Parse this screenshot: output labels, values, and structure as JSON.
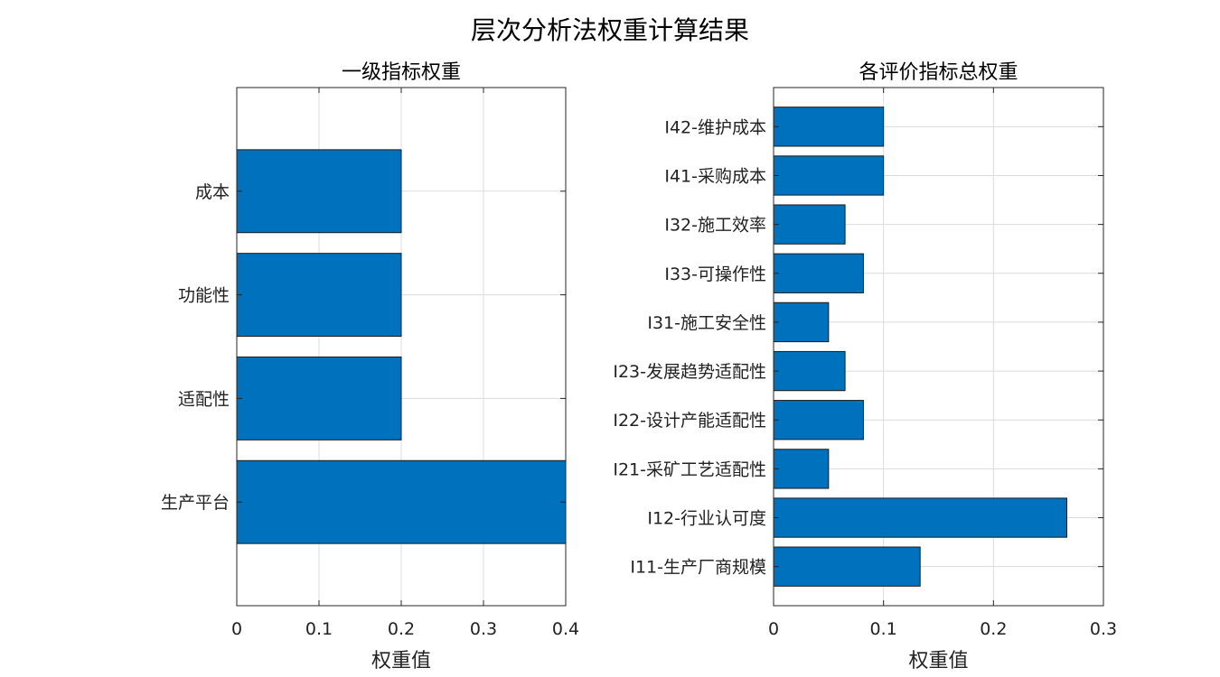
{
  "figure": {
    "title": "层次分析法权重计算结果"
  },
  "colors": {
    "bar": "#0072BD"
  },
  "chart_data": [
    {
      "type": "bar",
      "orientation": "horizontal",
      "title": "一级指标权重",
      "xlabel": "权重值",
      "categories": [
        "生产平台",
        "适配性",
        "功能性",
        "成本"
      ],
      "values": [
        0.4,
        0.2,
        0.2,
        0.2
      ],
      "xlim": [
        0,
        0.4
      ],
      "xticks": [
        "0",
        "0.1",
        "0.2",
        "0.3",
        "0.4"
      ],
      "grid": true
    },
    {
      "type": "bar",
      "orientation": "horizontal",
      "title": "各评价指标总权重",
      "xlabel": "权重值",
      "categories": [
        "I11-生产厂商规模",
        "I12-行业认可度",
        "I21-采矿工艺适配性",
        "I22-设计产能适配性",
        "I23-发展趋势适配性",
        "I31-施工安全性",
        "I33-可操作性",
        "I32-施工效率",
        "I41-采购成本",
        "I42-维护成本"
      ],
      "values": [
        0.1333,
        0.2667,
        0.05,
        0.0817,
        0.065,
        0.05,
        0.0817,
        0.065,
        0.1,
        0.1
      ],
      "xlim": [
        0,
        0.3
      ],
      "xticks": [
        "0",
        "0.1",
        "0.2",
        "0.3"
      ],
      "grid": true
    }
  ]
}
